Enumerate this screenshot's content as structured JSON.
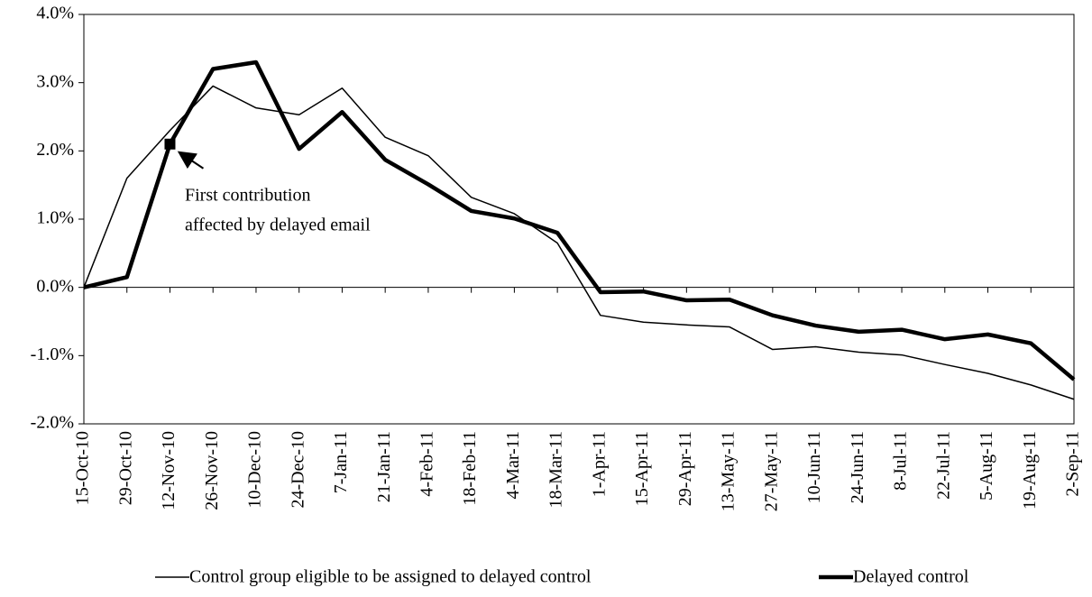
{
  "chart_data": {
    "type": "line",
    "categories": [
      "15-Oct-10",
      "29-Oct-10",
      "12-Nov-10",
      "26-Nov-10",
      "10-Dec-10",
      "24-Dec-10",
      "7-Jan-11",
      "21-Jan-11",
      "4-Feb-11",
      "18-Feb-11",
      "4-Mar-11",
      "18-Mar-11",
      "1-Apr-11",
      "15-Apr-11",
      "29-Apr-11",
      "13-May-11",
      "27-May-11",
      "10-Jun-11",
      "24-Jun-11",
      "8-Jul-11",
      "22-Jul-11",
      "5-Aug-11",
      "19-Aug-11",
      "2-Sep-11"
    ],
    "series": [
      {
        "name": "Control group eligible to be assigned to delayed control",
        "color": "#000000",
        "values": [
          0.0,
          1.6,
          2.3,
          2.95,
          2.63,
          2.53,
          2.92,
          2.2,
          1.93,
          1.32,
          1.08,
          0.65,
          -0.41,
          -0.51,
          -0.55,
          -0.58,
          -0.91,
          -0.87,
          -0.95,
          -0.99,
          -1.13,
          -1.26,
          -1.43,
          -1.64
        ]
      },
      {
        "name": "Delayed control",
        "color": "#000000",
        "values": [
          0.0,
          0.15,
          2.1,
          3.2,
          3.3,
          2.03,
          2.57,
          1.87,
          1.51,
          1.12,
          1.01,
          0.8,
          -0.07,
          -0.06,
          -0.19,
          -0.18,
          -0.41,
          -0.56,
          -0.65,
          -0.62,
          -0.76,
          -0.69,
          -0.82,
          -1.35
        ]
      }
    ],
    "ylim": [
      -2,
      4
    ],
    "yticks": [
      {
        "value": -2,
        "label": "-2.0%"
      },
      {
        "value": -1,
        "label": "-1.0%"
      },
      {
        "value": 0,
        "label": "0.0%"
      },
      {
        "value": 1,
        "label": "1.0%"
      },
      {
        "value": 2,
        "label": "2.0%"
      },
      {
        "value": 3,
        "label": "3.0%"
      },
      {
        "value": 4,
        "label": "4.0%"
      }
    ],
    "annotation": [
      "First contribution",
      "affected by delayed email"
    ],
    "legend": "bottom"
  }
}
